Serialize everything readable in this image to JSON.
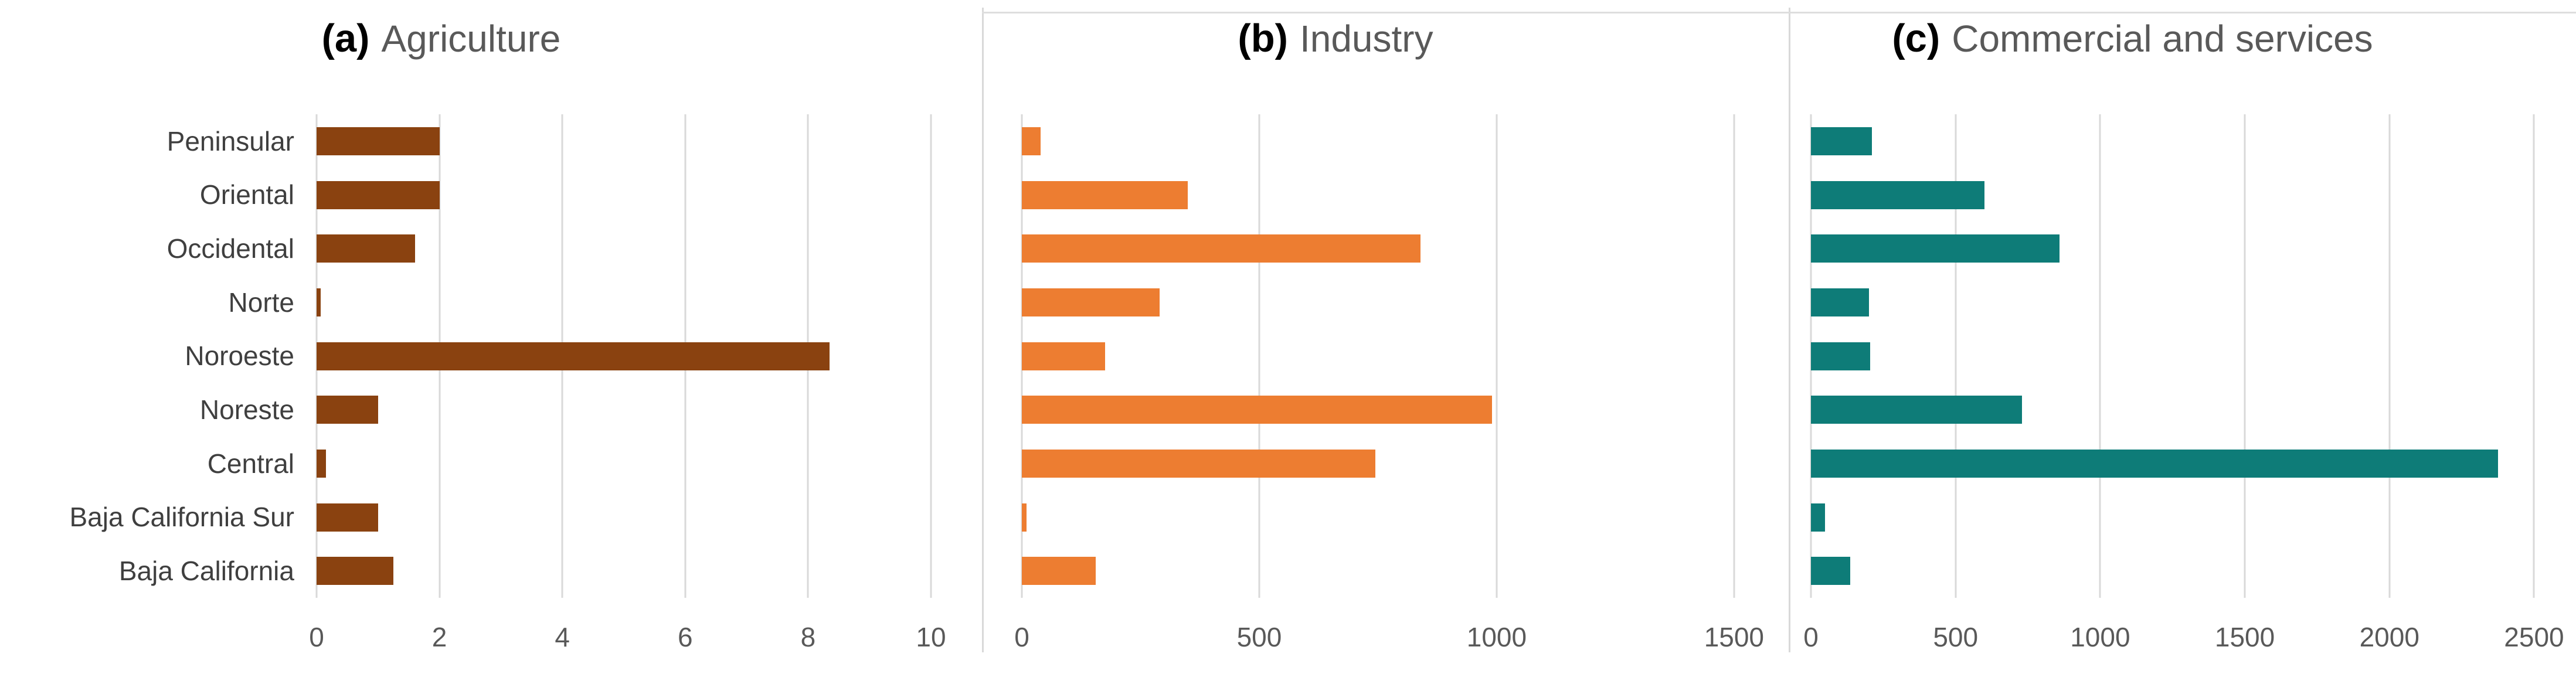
{
  "figure": {
    "background": "#ffffff",
    "separator_color": "#d9d9d9",
    "gridline_color": "#d9d9d9",
    "top_border_color": "#dedede",
    "tick_label_color": "#595959",
    "category_label_color": "#3f3f3f",
    "title_text_color": "#595959",
    "title_prefix_color": "#000000"
  },
  "chart_data": {
    "type": "bar",
    "orientation": "horizontal",
    "grid": "vertical",
    "legend": null,
    "categories": [
      "Peninsular",
      "Oriental",
      "Occidental",
      "Norte",
      "Noroeste",
      "Noreste",
      "Central",
      "Baja California Sur",
      "Baja California"
    ],
    "charts": [
      {
        "id": "a",
        "title_prefix": "(a)",
        "title": "Agriculture",
        "bar_color": "#8a4210",
        "xlim": [
          0,
          10
        ],
        "ticks": [
          0,
          2,
          4,
          6,
          8,
          10
        ],
        "values": [
          2,
          2,
          1.6,
          0.07,
          8.35,
          1,
          0.15,
          1,
          1.25
        ]
      },
      {
        "id": "b",
        "title_prefix": "(b)",
        "title": "Industry",
        "bar_color": "#ed7d31",
        "xlim": [
          0,
          1500
        ],
        "ticks": [
          0,
          500,
          1000,
          1500
        ],
        "values": [
          40,
          350,
          840,
          290,
          175,
          990,
          745,
          10,
          155
        ]
      },
      {
        "id": "c",
        "title_prefix": "(c)",
        "title": "Commercial and services",
        "bar_color": "#0e7c78",
        "xlim": [
          0,
          2500
        ],
        "ticks": [
          0,
          500,
          1000,
          1500,
          2000,
          2500
        ],
        "values": [
          210,
          600,
          860,
          200,
          205,
          730,
          2375,
          48,
          135
        ]
      }
    ]
  }
}
